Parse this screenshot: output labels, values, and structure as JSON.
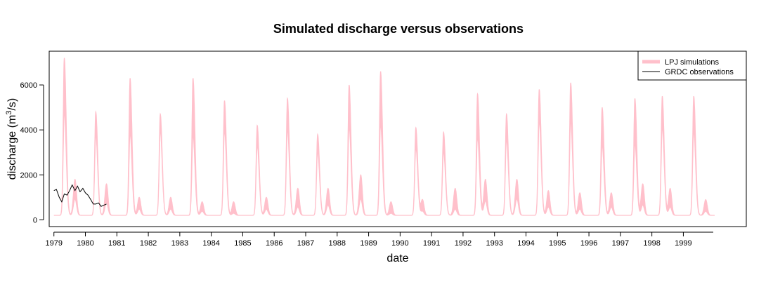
{
  "chart_data": {
    "type": "line",
    "title": "Simulated discharge versus observations",
    "xlabel": "date",
    "ylabel": "discharge (m³/s)",
    "ylabel_parts": {
      "prefix": "discharge (m",
      "superscript": "3",
      "suffix": "/s)"
    },
    "x_ticks": [
      "1979",
      "1980",
      "1981",
      "1982",
      "1983",
      "1984",
      "1985",
      "1986",
      "1987",
      "1988",
      "1989",
      "1990",
      "1991",
      "1992",
      "1993",
      "1994",
      "1995",
      "1996",
      "1997",
      "1998",
      "1999"
    ],
    "y_ticks": [
      0,
      2000,
      4000,
      6000
    ],
    "xlim": [
      1978.85,
      2001.0
    ],
    "ylim": [
      -300,
      7500
    ],
    "legend_position": "top-right",
    "colors": {
      "simulations": "#ffc0cb",
      "observations": "#000000"
    },
    "series": [
      {
        "name": "LPJ simulations",
        "style": "band",
        "annual_peaks": [
          {
            "x": 1979.33,
            "high": 7200,
            "low": 5200
          },
          {
            "x": 1980.33,
            "high": 4800,
            "low": 4100
          },
          {
            "x": 1981.42,
            "high": 6300,
            "low": 4200
          },
          {
            "x": 1982.38,
            "high": 4700,
            "low": 4300
          },
          {
            "x": 1983.42,
            "high": 6300,
            "low": 4100
          },
          {
            "x": 1984.42,
            "high": 5300,
            "low": 4300
          },
          {
            "x": 1985.46,
            "high": 4200,
            "low": 3600
          },
          {
            "x": 1986.42,
            "high": 5400,
            "low": 4400
          },
          {
            "x": 1987.38,
            "high": 3800,
            "low": 3300
          },
          {
            "x": 1988.38,
            "high": 6000,
            "low": 4500
          },
          {
            "x": 1989.38,
            "high": 6600,
            "low": 4600
          },
          {
            "x": 1990.5,
            "high": 4100,
            "low": 3500
          },
          {
            "x": 1991.38,
            "high": 3900,
            "low": 3300
          },
          {
            "x": 1992.46,
            "high": 5600,
            "low": 4000
          },
          {
            "x": 1993.38,
            "high": 4700,
            "low": 3900
          },
          {
            "x": 1994.42,
            "high": 5800,
            "low": 4800
          },
          {
            "x": 1995.42,
            "high": 6100,
            "low": 4800
          },
          {
            "x": 1996.42,
            "high": 5000,
            "low": 3600
          },
          {
            "x": 1997.46,
            "high": 5400,
            "low": 3700
          },
          {
            "x": 1998.33,
            "high": 5500,
            "low": 4500
          },
          {
            "x": 1999.33,
            "high": 5500,
            "low": 4300
          }
        ],
        "annual_secondary": [
          {
            "x": 1979.67,
            "high": 1800,
            "low": 1000
          },
          {
            "x": 1980.67,
            "high": 1600,
            "low": 800
          },
          {
            "x": 1981.71,
            "high": 1000,
            "low": 500
          },
          {
            "x": 1982.71,
            "high": 1000,
            "low": 500
          },
          {
            "x": 1983.71,
            "high": 800,
            "low": 400
          },
          {
            "x": 1984.71,
            "high": 800,
            "low": 300
          },
          {
            "x": 1985.75,
            "high": 1000,
            "low": 500
          },
          {
            "x": 1986.75,
            "high": 1400,
            "low": 600
          },
          {
            "x": 1987.71,
            "high": 1400,
            "low": 700
          },
          {
            "x": 1988.75,
            "high": 2000,
            "low": 1000
          },
          {
            "x": 1989.71,
            "high": 800,
            "low": 300
          },
          {
            "x": 1990.71,
            "high": 900,
            "low": 400
          },
          {
            "x": 1991.75,
            "high": 1400,
            "low": 500
          },
          {
            "x": 1992.71,
            "high": 1800,
            "low": 900
          },
          {
            "x": 1993.71,
            "high": 1800,
            "low": 1000
          },
          {
            "x": 1994.71,
            "high": 1300,
            "low": 600
          },
          {
            "x": 1995.71,
            "high": 1200,
            "low": 500
          },
          {
            "x": 1996.71,
            "high": 1200,
            "low": 600
          },
          {
            "x": 1997.71,
            "high": 1600,
            "low": 700
          },
          {
            "x": 1998.58,
            "high": 1400,
            "low": 600
          },
          {
            "x": 1999.71,
            "high": 900,
            "low": 400
          }
        ],
        "baseflow": 200,
        "x_start": 1979.0,
        "x_end": 2000.0
      },
      {
        "name": "GRDC observations",
        "style": "line",
        "points": [
          [
            1979.0,
            1300
          ],
          [
            1979.08,
            1350
          ],
          [
            1979.17,
            1000
          ],
          [
            1979.25,
            800
          ],
          [
            1979.33,
            1150
          ],
          [
            1979.42,
            1100
          ],
          [
            1979.5,
            1300
          ],
          [
            1979.58,
            1550
          ],
          [
            1979.67,
            1300
          ],
          [
            1979.75,
            1500
          ],
          [
            1979.83,
            1250
          ],
          [
            1979.92,
            1400
          ],
          [
            1980.0,
            1200
          ],
          [
            1980.08,
            1100
          ],
          [
            1980.17,
            900
          ],
          [
            1980.25,
            700
          ],
          [
            1980.33,
            700
          ],
          [
            1980.42,
            750
          ],
          [
            1980.5,
            600
          ],
          [
            1980.58,
            650
          ],
          [
            1980.67,
            700
          ]
        ]
      }
    ]
  }
}
